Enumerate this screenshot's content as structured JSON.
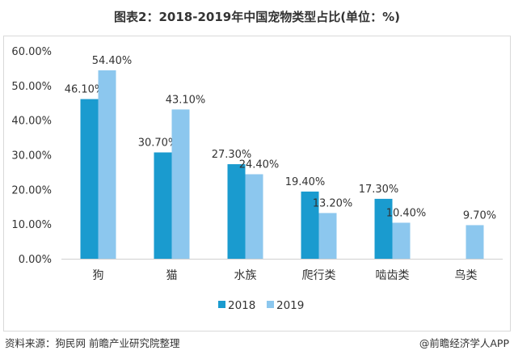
{
  "title": "图表2：2018-2019年中国宠物类型占比(单位：%)",
  "source": "资料来源：狗民网 前瞻产业研究院整理",
  "credit": "@前瞻经济学人APP",
  "chart_data": {
    "type": "bar",
    "title": "图表2：2018-2019年中国宠物类型占比(单位：%)",
    "categories": [
      "狗",
      "猫",
      "水族",
      "爬行类",
      "啮齿类",
      "鸟类"
    ],
    "series": [
      {
        "name": "2018",
        "color": "#1a9bcf",
        "values": [
          46.1,
          30.7,
          27.3,
          19.4,
          17.3,
          null
        ],
        "labels": [
          "46.10%",
          "30.70%",
          "27.30%",
          "19.40%",
          "17.30%",
          ""
        ]
      },
      {
        "name": "2019",
        "color": "#8cc7ee",
        "values": [
          54.4,
          43.1,
          24.4,
          13.2,
          10.4,
          9.7
        ],
        "labels": [
          "54.40%",
          "43.10%",
          "24.40%",
          "13.20%",
          "10.40%",
          "9.70%"
        ]
      }
    ],
    "yticks": [
      "0.00%",
      "10.00%",
      "20.00%",
      "30.00%",
      "40.00%",
      "50.00%",
      "60.00%"
    ],
    "ylim": [
      0,
      60
    ],
    "legend": "bottom",
    "grid": false
  }
}
